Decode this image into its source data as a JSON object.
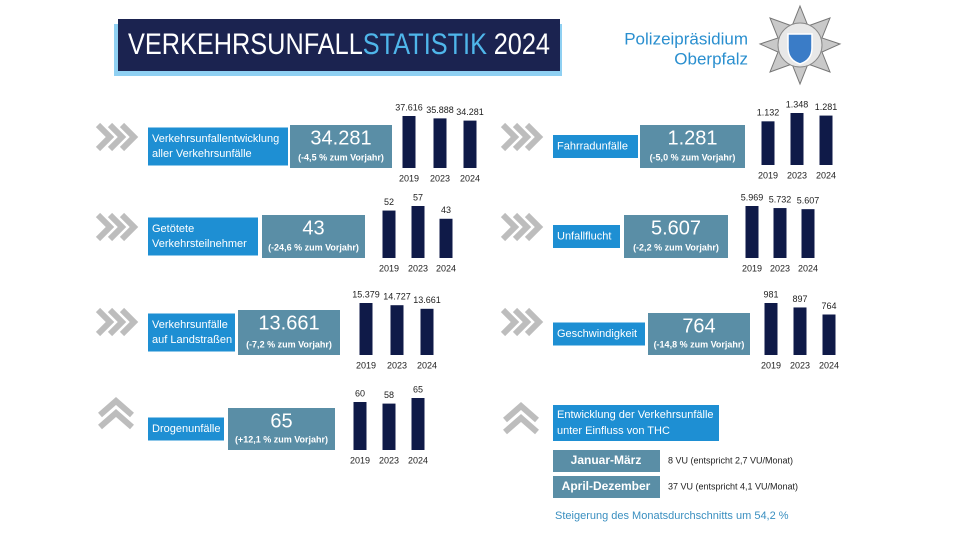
{
  "header": {
    "title_part1": "VERKEHRSUNFALL",
    "title_part2": "STATISTIK",
    "title_part3": "2024",
    "org_line1": "Polizeipräsidium",
    "org_line2": "Oberpfalz"
  },
  "chart_data": [
    {
      "type": "bar",
      "title": [
        "Verkehrsunfallentwicklung",
        "aller Verkehrsunfälle"
      ],
      "headline": "34.281",
      "subtitle": "(-4,5 % zum Vorjahr)",
      "categories": [
        "2019",
        "2023",
        "2024"
      ],
      "values": [
        37616,
        35888,
        34281
      ],
      "value_labels": [
        "37.616",
        "35.888",
        "34.281"
      ],
      "color": "#0f1a48"
    },
    {
      "type": "bar",
      "title": [
        "Getötete",
        "Verkehrsteilnehmer"
      ],
      "headline": "43",
      "subtitle": "(-24,6 % zum Vorjahr)",
      "categories": [
        "2019",
        "2023",
        "2024"
      ],
      "values": [
        52,
        57,
        43
      ],
      "color": "#0f1a48"
    },
    {
      "type": "bar",
      "title": [
        "Verkehrsunfälle",
        "auf Landstraßen"
      ],
      "headline": "13.661",
      "subtitle": "(-7,2 % zum Vorjahr)",
      "categories": [
        "2019",
        "2023",
        "2024"
      ],
      "values": [
        15379,
        14727,
        13661
      ],
      "value_labels": [
        "15.379",
        "14.727",
        "13.661"
      ],
      "color": "#0f1a48"
    },
    {
      "type": "bar",
      "title": [
        "Drogenunfälle"
      ],
      "headline": "65",
      "subtitle": "(+12,1 % zum Vorjahr)",
      "categories": [
        "2019",
        "2023",
        "2024"
      ],
      "values": [
        60,
        58,
        65
      ],
      "color": "#0f1a48"
    },
    {
      "type": "bar",
      "title": [
        "Fahrradunfälle"
      ],
      "headline": "1.281",
      "subtitle": "(-5,0 % zum Vorjahr)",
      "categories": [
        "2019",
        "2023",
        "2024"
      ],
      "values": [
        1132,
        1348,
        1281
      ],
      "value_labels": [
        "1.132",
        "1.348",
        "1.281"
      ],
      "color": "#0f1a48"
    },
    {
      "type": "bar",
      "title": [
        "Unfallflucht"
      ],
      "headline": "5.607",
      "subtitle": "(-2,2 % zum Vorjahr)",
      "categories": [
        "2019",
        "2023",
        "2024"
      ],
      "values": [
        5969,
        5732,
        5607
      ],
      "value_labels": [
        "5.969",
        "5.732",
        "5.607"
      ],
      "color": "#0f1a48"
    },
    {
      "type": "bar",
      "title": [
        "Geschwindigkeit"
      ],
      "headline": "764",
      "subtitle": "(-14,8 % zum Vorjahr)",
      "categories": [
        "2019",
        "2023",
        "2024"
      ],
      "values": [
        981,
        897,
        764
      ],
      "color": "#0f1a48"
    }
  ],
  "thc": {
    "title": [
      "Entwicklung der Verkehrsunfälle",
      "unter Einfluss von THC"
    ],
    "rows": [
      [
        "Januar-März",
        "8 VU (entspricht 2,7 VU/Monat)"
      ],
      [
        "April-Dezember",
        "37 VU (entspricht 4,1 VU/Monat)"
      ]
    ],
    "footer": "Steigerung des Monatsdurchschnitts um 54,2 %"
  }
}
